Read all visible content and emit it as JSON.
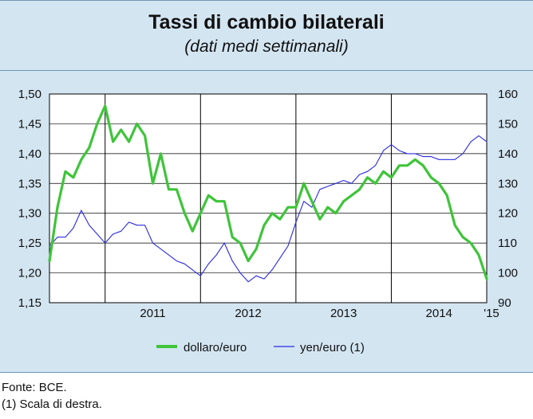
{
  "title": "Tassi di cambio bilaterali",
  "subtitle": "(dati medi settimanali)",
  "notes": {
    "source": "Fonte: BCE.",
    "footnote": "(1) Scala di destra."
  },
  "colors": {
    "dollar": "#3fc43a",
    "yen": "#2a2ae0"
  },
  "chart_data": {
    "type": "line",
    "title": "Tassi di cambio bilaterali",
    "subtitle": "(dati medi settimanali)",
    "x_tick_labels": [
      "2011",
      "2012",
      "2013",
      "2014",
      "'15"
    ],
    "x_range": [
      "2010-06",
      "2015-01"
    ],
    "year_dividers": [
      "2011-01",
      "2012-01",
      "2013-01",
      "2014-01",
      "2015-01"
    ],
    "y_left": {
      "ylim": [
        1.15,
        1.5
      ],
      "ticks": [
        "1,50",
        "1,45",
        "1,40",
        "1,35",
        "1,30",
        "1,25",
        "1,20",
        "1,15"
      ],
      "tick_values": [
        1.5,
        1.45,
        1.4,
        1.35,
        1.3,
        1.25,
        1.2,
        1.15
      ]
    },
    "y_right": {
      "ylim": [
        90,
        160
      ],
      "ticks": [
        "160",
        "150",
        "140",
        "130",
        "120",
        "110",
        "100",
        "90"
      ],
      "tick_values": [
        160,
        150,
        140,
        130,
        120,
        110,
        100,
        90
      ]
    },
    "grid": "horizontal",
    "legend": "bottom",
    "series": [
      {
        "name": "dollaro/euro",
        "axis": "left",
        "color": "#3fc43a",
        "x": [
          "2010-06",
          "2010-07",
          "2010-08",
          "2010-09",
          "2010-10",
          "2010-11",
          "2010-12",
          "2011-01",
          "2011-02",
          "2011-03",
          "2011-04",
          "2011-05",
          "2011-06",
          "2011-07",
          "2011-08",
          "2011-09",
          "2011-10",
          "2011-11",
          "2011-12",
          "2012-01",
          "2012-02",
          "2012-03",
          "2012-04",
          "2012-05",
          "2012-06",
          "2012-07",
          "2012-08",
          "2012-09",
          "2012-10",
          "2012-11",
          "2012-12",
          "2013-01",
          "2013-02",
          "2013-03",
          "2013-04",
          "2013-05",
          "2013-06",
          "2013-07",
          "2013-08",
          "2013-09",
          "2013-10",
          "2013-11",
          "2013-12",
          "2014-01",
          "2014-02",
          "2014-03",
          "2014-04",
          "2014-05",
          "2014-06",
          "2014-07",
          "2014-08",
          "2014-09",
          "2014-10",
          "2014-11",
          "2014-12",
          "2015-01"
        ],
        "values": [
          1.22,
          1.31,
          1.37,
          1.36,
          1.39,
          1.41,
          1.45,
          1.48,
          1.42,
          1.44,
          1.42,
          1.45,
          1.43,
          1.35,
          1.4,
          1.34,
          1.34,
          1.3,
          1.27,
          1.3,
          1.33,
          1.32,
          1.32,
          1.26,
          1.25,
          1.22,
          1.24,
          1.28,
          1.3,
          1.29,
          1.31,
          1.31,
          1.35,
          1.32,
          1.29,
          1.31,
          1.3,
          1.32,
          1.33,
          1.34,
          1.36,
          1.35,
          1.37,
          1.36,
          1.38,
          1.38,
          1.39,
          1.38,
          1.36,
          1.35,
          1.33,
          1.28,
          1.26,
          1.25,
          1.23,
          1.19
        ]
      },
      {
        "name": "yen/euro (1)",
        "axis": "right",
        "color": "#2a2ae0",
        "x": [
          "2010-06",
          "2010-07",
          "2010-08",
          "2010-09",
          "2010-10",
          "2010-11",
          "2010-12",
          "2011-01",
          "2011-02",
          "2011-03",
          "2011-04",
          "2011-05",
          "2011-06",
          "2011-07",
          "2011-08",
          "2011-09",
          "2011-10",
          "2011-11",
          "2011-12",
          "2012-01",
          "2012-02",
          "2012-03",
          "2012-04",
          "2012-05",
          "2012-06",
          "2012-07",
          "2012-08",
          "2012-09",
          "2012-10",
          "2012-11",
          "2012-12",
          "2013-01",
          "2013-02",
          "2013-03",
          "2013-04",
          "2013-05",
          "2013-06",
          "2013-07",
          "2013-08",
          "2013-09",
          "2013-10",
          "2013-11",
          "2013-12",
          "2014-01",
          "2014-02",
          "2014-03",
          "2014-04",
          "2014-05",
          "2014-06",
          "2014-07",
          "2014-08",
          "2014-09",
          "2014-10",
          "2014-11",
          "2014-12",
          "2015-01"
        ],
        "values": [
          109,
          112,
          112,
          115,
          121,
          116,
          113,
          110,
          113,
          114,
          117,
          116,
          116,
          110,
          108,
          106,
          104,
          103,
          101,
          99,
          103,
          106,
          110,
          104,
          100,
          97,
          99,
          98,
          101,
          105,
          109,
          117,
          124,
          122,
          128,
          129,
          130,
          131,
          130,
          133,
          134,
          136,
          141,
          143,
          141,
          140,
          140,
          139,
          139,
          138,
          138,
          138,
          140,
          144,
          146,
          144
        ]
      }
    ]
  }
}
